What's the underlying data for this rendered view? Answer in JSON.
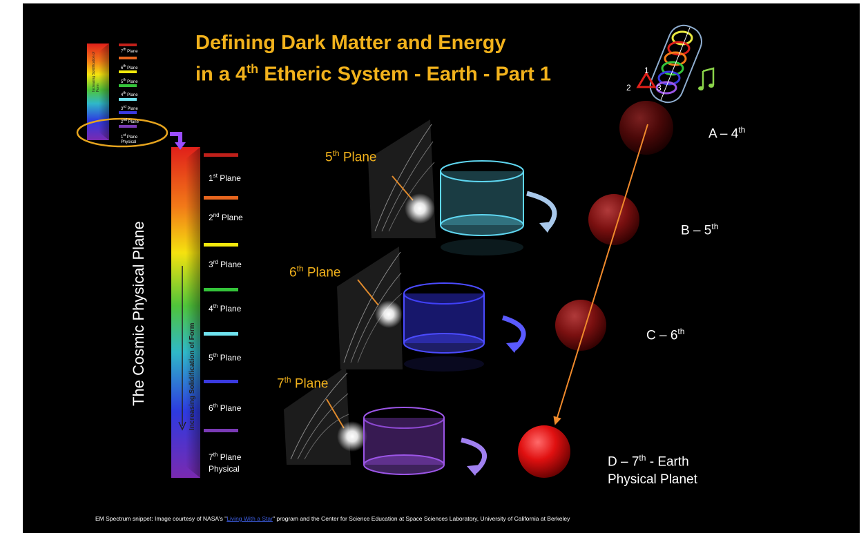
{
  "title": {
    "line1": "Defining Dark Matter and Energy",
    "line2_pre": "in a 4",
    "line2_sup": "th",
    "line2_post": " Etheric System - Earth - Part 1"
  },
  "vertical_title": "The Cosmic Physical Plane",
  "bar_text": "Increasing Solidification of Form",
  "mini_bar_text": "Increasing Solidification of Form",
  "planes": [
    {
      "num": "1",
      "sup": "st",
      "rest": " Plane",
      "color": "#c0201a"
    },
    {
      "num": "2",
      "sup": "nd",
      "rest": " Plane",
      "color": "#e8661e"
    },
    {
      "num": "3",
      "sup": "rd",
      "rest": " Plane",
      "color": "#f3ea0c"
    },
    {
      "num": "4",
      "sup": "th",
      "rest": " Plane",
      "color": "#34c43a"
    },
    {
      "num": "5",
      "sup": "th",
      "rest": " Plane",
      "color": "#6fe3ef"
    },
    {
      "num": "6",
      "sup": "th",
      "rest": " Plane",
      "color": "#3a3ae0"
    },
    {
      "num": "7",
      "sup": "th",
      "rest": " Plane",
      "extra": "Physical",
      "color": "#7a3ab5"
    }
  ],
  "mini_planes": [
    {
      "num": "7",
      "sup": "th",
      "rest": " Plane",
      "color": "#c0201a"
    },
    {
      "num": "6",
      "sup": "th",
      "rest": " Plane",
      "color": "#e8661e"
    },
    {
      "num": "5",
      "sup": "th",
      "rest": " Plane",
      "color": "#f3ea0c"
    },
    {
      "num": "4",
      "sup": "th",
      "rest": " Plane",
      "color": "#34c43a"
    },
    {
      "num": "3",
      "sup": "rd",
      "rest": " Plane",
      "color": "#6fe3ef"
    },
    {
      "num": "2",
      "sup": "nd",
      "rest": " Plane",
      "color": "#3a3ae0"
    },
    {
      "num": "1",
      "sup": "st",
      "rest": " Plane",
      "extra": "Physical",
      "color": "#7a3ab5"
    }
  ],
  "plane_diagrams": [
    {
      "num": "5",
      "sup": "th",
      "rest": " Plane",
      "color": "#5fd6f0"
    },
    {
      "num": "6",
      "sup": "th",
      "rest": " Plane",
      "color": "#4b4bff"
    },
    {
      "num": "7",
      "sup": "th",
      "rest": " Plane",
      "color": "#9b55e6"
    }
  ],
  "spheres": [
    {
      "pre": "A – 4",
      "sup": "th",
      "post": ""
    },
    {
      "pre": "B – 5",
      "sup": "th",
      "post": ""
    },
    {
      "pre": "C – 6",
      "sup": "th",
      "post": ""
    },
    {
      "pre": "D – 7",
      "sup": "th",
      "post": "  -  Earth",
      "line2": "Physical Planet"
    }
  ],
  "triangle_numbers": [
    "1",
    "2",
    "3"
  ],
  "footer": {
    "pre": "EM Spectrum snippet: Image courtesy of NASA's \"",
    "link": "Living With a Star",
    "post": "\" program and the Center for Science Education at Space Sciences Laboratory, University of California at Berkeley"
  },
  "colors": {
    "background": "#000000",
    "accent": "#f2b21c",
    "arrow": "#f08a2c",
    "highlight_ellipse": "#e6a41e",
    "connector": "#9b4dff"
  },
  "icons": [
    "music-note-icon",
    "triangle-icon",
    "rings-icon",
    "curved-arrow-icon"
  ]
}
